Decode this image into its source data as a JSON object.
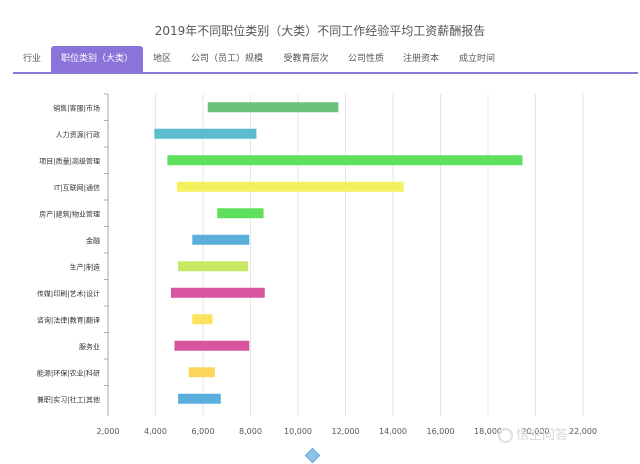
{
  "title": "2019年不同职位类别（大类）不同工作经验平均工资薪酬报告",
  "tabs": [
    {
      "label": "行业",
      "active": false
    },
    {
      "label": "职位类别（大类）",
      "active": true
    },
    {
      "label": "地区",
      "active": false
    },
    {
      "label": "公司（员工）规模",
      "active": false
    },
    {
      "label": "受教育层次",
      "active": false
    },
    {
      "label": "公司性质",
      "active": false
    },
    {
      "label": "注册资本",
      "active": false
    },
    {
      "label": "成立时间",
      "active": false
    }
  ],
  "watermark": "悟空问答",
  "colors": {
    "accent": "#8b73d9",
    "grid": "#e6e6e6"
  },
  "chart_data": {
    "type": "bar",
    "orientation": "horizontal-range",
    "title": "",
    "xlabel": "",
    "ylabel": "",
    "xlim": [
      2000,
      22000
    ],
    "xticks": [
      2000,
      4000,
      6000,
      8000,
      10000,
      12000,
      14000,
      16000,
      18000,
      20000,
      22000
    ],
    "xtick_labels": [
      "2,000",
      "4,000",
      "6,000",
      "8,000",
      "10,000",
      "12,000",
      "14,000",
      "16,000",
      "18,000",
      "20,000",
      "22,000"
    ],
    "grid": true,
    "categories": [
      "销售|客服|市场",
      "人力资源|行政",
      "项目|质量|高级管理",
      "IT|互联网|通信",
      "房产|建筑|物业管理",
      "金融",
      "生产|制造",
      "传媒|印刷|艺术|设计",
      "咨询|法律|教育|翻译",
      "服务业",
      "能源|环保|农业|科研",
      "兼职|实习|社工|其他"
    ],
    "ranges": [
      [
        6200,
        11700
      ],
      [
        3950,
        8250
      ],
      [
        4500,
        19450
      ],
      [
        4900,
        14450
      ],
      [
        6600,
        8550
      ],
      [
        5550,
        7950
      ],
      [
        4950,
        7900
      ],
      [
        4650,
        8600
      ],
      [
        5550,
        6400
      ],
      [
        4800,
        7950
      ],
      [
        5400,
        6500
      ],
      [
        4950,
        6750
      ]
    ],
    "bar_colors": [
      "#6cc07a",
      "#5bbbcf",
      "#5ee05e",
      "#f4f15f",
      "#5ee05e",
      "#5aaedc",
      "#c8e864",
      "#d9549f",
      "#fde25b",
      "#d9549f",
      "#fcd65a",
      "#5aaedc"
    ]
  }
}
